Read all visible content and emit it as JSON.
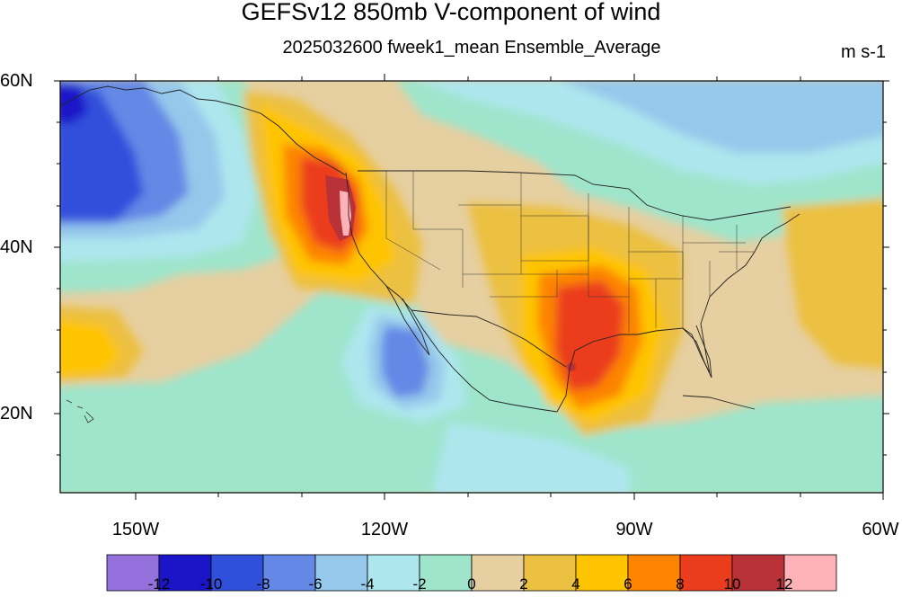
{
  "title": "GEFSv12 850mb V-component of wind",
  "subtitle": "2025032600 fweek1_mean Ensemble_Average",
  "units": "m s-1",
  "lat_labels": [
    "60N",
    "40N",
    "20N"
  ],
  "lon_labels": [
    "150W",
    "120W",
    "90W",
    "60W"
  ],
  "colorbar": {
    "colors": [
      "#9370db",
      "#1a16c8",
      "#3050dc",
      "#6488e6",
      "#96c8eb",
      "#aee6ee",
      "#9ee5cc",
      "#e6cfa0",
      "#ecc040",
      "#fec400",
      "#fd8400",
      "#eb3c1e",
      "#b93238",
      "#ffb2b8"
    ],
    "labels": [
      "-12",
      "-10",
      "-8",
      "-6",
      "-4",
      "-2",
      "0",
      "2",
      "4",
      "6",
      "8",
      "10",
      "12"
    ]
  },
  "map": {
    "extent": {
      "lon": [
        -159,
        -60
      ],
      "lat": [
        10,
        60
      ]
    },
    "fields": [
      {
        "level": "-8",
        "color": "#3050dc",
        "region": "gulf of alaska low"
      },
      {
        "level": "-6",
        "color": "#6488e6",
        "region": "off baja california"
      },
      {
        "level": "10",
        "color": "#eb3c1e",
        "region": "pacific northwest coast"
      },
      {
        "level": "10",
        "color": "#eb3c1e",
        "region": "texas / gulf coast"
      },
      {
        "level": "-2",
        "color": "#9ee5cc",
        "region": "great lakes / northeast"
      }
    ]
  }
}
